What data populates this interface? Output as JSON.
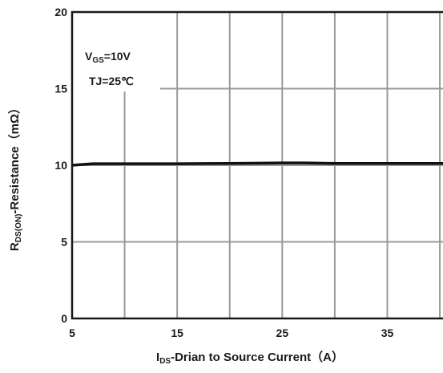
{
  "chart_data": {
    "type": "line",
    "x_ticks": [
      5,
      15,
      25,
      35
    ],
    "y_ticks": [
      0,
      5,
      10,
      15,
      20
    ],
    "xlim": [
      5,
      40.3
    ],
    "ylim": [
      0,
      20
    ],
    "grid": true,
    "xlabel": {
      "main": "I",
      "sub": "DS",
      "rest": "-Drian to Source  Current（A）"
    },
    "ylabel": {
      "main": "R",
      "sub": "DS(ON)",
      "rest": "-Resistance（mΩ）"
    },
    "annotations": [
      {
        "main": "V",
        "sub": "GS",
        "rest": "=10V"
      },
      {
        "main": "TJ=25℃",
        "sub": "",
        "rest": ""
      }
    ],
    "series": [
      {
        "x": [
          5,
          7,
          10,
          15,
          20,
          25,
          27,
          30,
          35,
          40.3
        ],
        "y": [
          10.0,
          10.1,
          10.1,
          10.1,
          10.12,
          10.15,
          10.15,
          10.12,
          10.12,
          10.12
        ]
      }
    ]
  }
}
